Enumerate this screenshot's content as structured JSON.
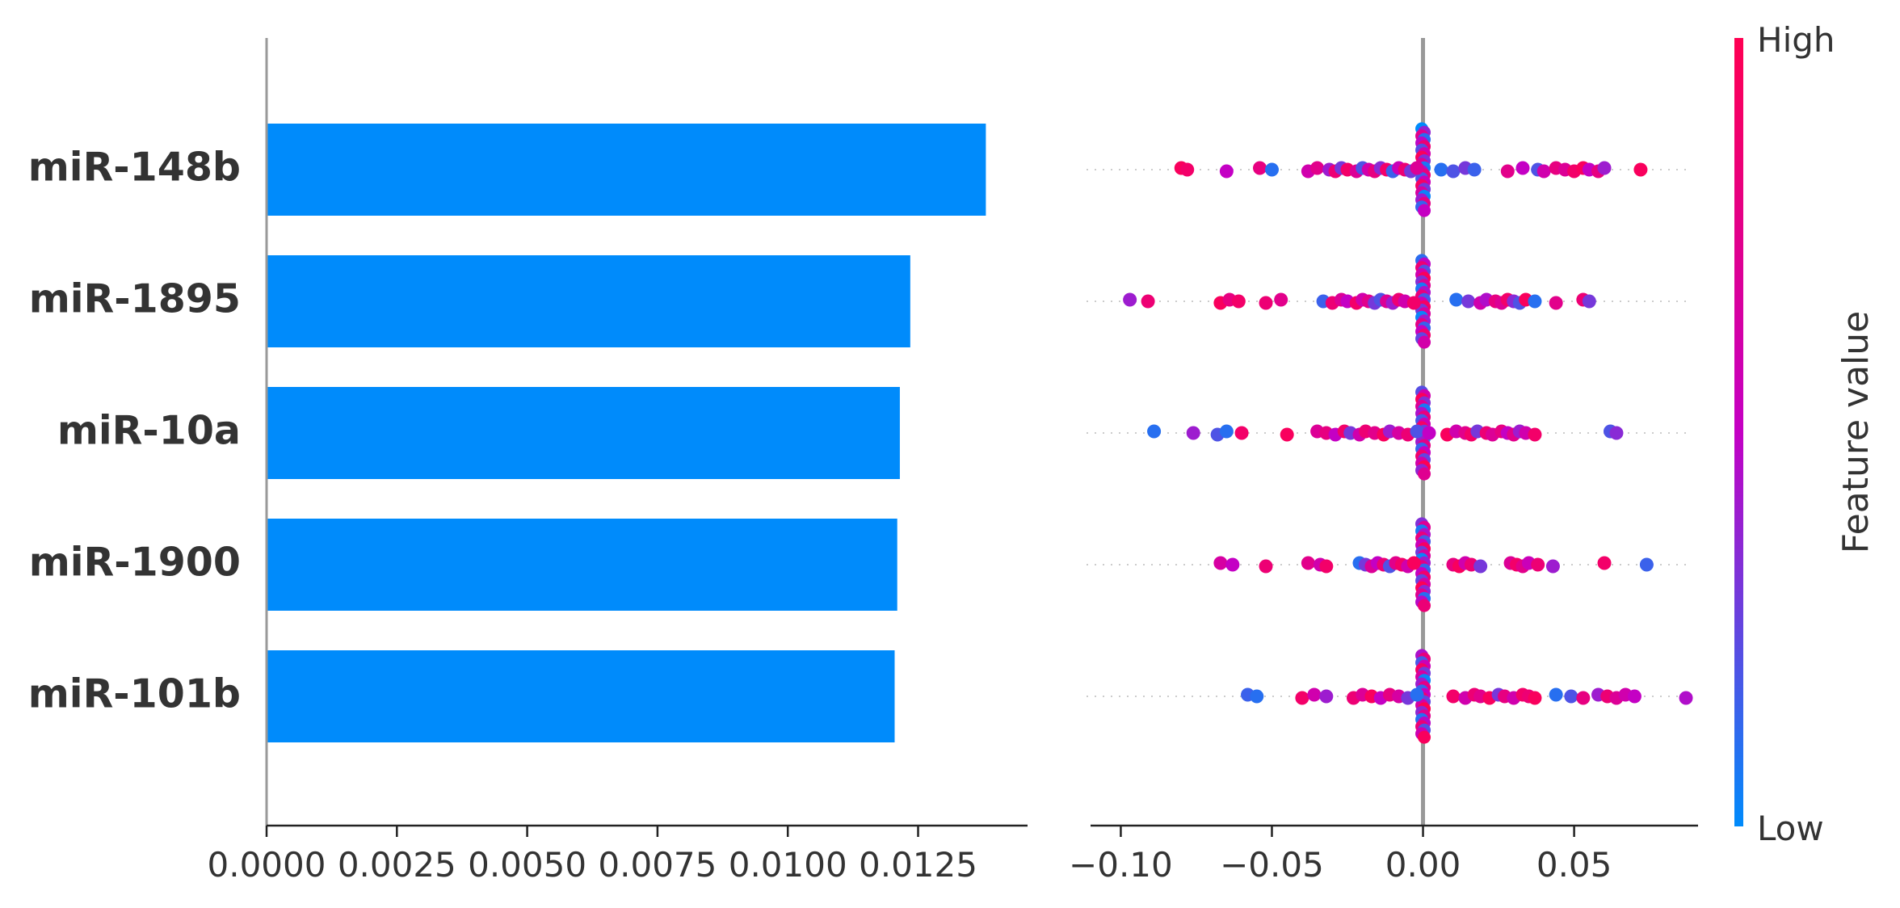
{
  "chart_data": [
    {
      "type": "bar",
      "orientation": "horizontal",
      "categories": [
        "miR-148b",
        "miR-1895",
        "miR-10a",
        "miR-1900",
        "miR-101b"
      ],
      "values": [
        0.0138,
        0.01235,
        0.01215,
        0.0121,
        0.01205
      ],
      "xlim": [
        0,
        0.0146
      ],
      "xticks": [
        0.0,
        0.0025,
        0.005,
        0.0075,
        0.01,
        0.0125
      ],
      "xtick_labels": [
        "0.0000",
        "0.0025",
        "0.0050",
        "0.0075",
        "0.0100",
        "0.0125"
      ],
      "bar_color": "#008bfb",
      "grid": false
    },
    {
      "type": "scatter",
      "style": "beeswarm",
      "categories": [
        "miR-148b",
        "miR-1895",
        "miR-10a",
        "miR-1900",
        "miR-101b"
      ],
      "xlim": [
        -0.11,
        0.091
      ],
      "xticks": [
        -0.1,
        -0.05,
        0.0,
        0.05
      ],
      "xtick_labels": [
        "−0.10",
        "−0.05",
        "0.00",
        "0.05"
      ],
      "zero_line": 0.0,
      "colorbar": {
        "title": "Feature value",
        "high_label": "High",
        "low_label": "Low",
        "low_color": "#008bfb",
        "mid_color": "#c400c4",
        "high_color": "#ff0052"
      },
      "series": [
        {
          "points": [
            [
              -0.08,
              0.95
            ],
            [
              -0.078,
              0.9
            ],
            [
              -0.065,
              0.5
            ],
            [
              -0.054,
              0.8
            ],
            [
              -0.05,
              0.1
            ],
            [
              -0.038,
              0.6
            ],
            [
              -0.035,
              0.75
            ],
            [
              -0.031,
              0.4
            ],
            [
              -0.029,
              0.85
            ],
            [
              -0.027,
              0.3
            ],
            [
              -0.025,
              0.9
            ],
            [
              -0.022,
              0.7
            ],
            [
              -0.02,
              0.2
            ],
            [
              -0.018,
              0.6
            ],
            [
              -0.016,
              0.8
            ],
            [
              -0.014,
              0.35
            ],
            [
              -0.012,
              0.9
            ],
            [
              -0.01,
              0.15
            ],
            [
              -0.008,
              0.55
            ],
            [
              -0.006,
              0.85
            ],
            [
              -0.004,
              0.3
            ],
            [
              -0.002,
              0.7
            ],
            [
              0.006,
              0.1
            ],
            [
              0.01,
              0.2
            ],
            [
              0.014,
              0.3
            ],
            [
              0.017,
              0.15
            ],
            [
              0.028,
              0.75
            ],
            [
              0.033,
              0.5
            ],
            [
              0.038,
              0.2
            ],
            [
              0.04,
              0.6
            ],
            [
              0.044,
              0.8
            ],
            [
              0.047,
              0.7
            ],
            [
              0.05,
              0.9
            ],
            [
              0.053,
              0.95
            ],
            [
              0.055,
              0.5
            ],
            [
              0.058,
              0.8
            ],
            [
              0.06,
              0.4
            ],
            [
              0.072,
              0.95
            ]
          ]
        },
        {
          "points": [
            [
              -0.097,
              0.4
            ],
            [
              -0.091,
              0.85
            ],
            [
              -0.067,
              0.95
            ],
            [
              -0.064,
              0.8
            ],
            [
              -0.061,
              0.9
            ],
            [
              -0.052,
              0.85
            ],
            [
              -0.047,
              0.75
            ],
            [
              -0.033,
              0.15
            ],
            [
              -0.03,
              0.85
            ],
            [
              -0.027,
              0.7
            ],
            [
              -0.025,
              0.5
            ],
            [
              -0.022,
              0.9
            ],
            [
              -0.02,
              0.6
            ],
            [
              -0.018,
              0.75
            ],
            [
              -0.016,
              0.3
            ],
            [
              -0.014,
              0.2
            ],
            [
              -0.012,
              0.7
            ],
            [
              -0.01,
              0.4
            ],
            [
              -0.008,
              0.85
            ],
            [
              -0.006,
              0.6
            ],
            [
              -0.003,
              0.9
            ],
            [
              0.011,
              0.1
            ],
            [
              0.015,
              0.3
            ],
            [
              0.019,
              0.6
            ],
            [
              0.021,
              0.45
            ],
            [
              0.024,
              0.8
            ],
            [
              0.026,
              0.7
            ],
            [
              0.028,
              0.9
            ],
            [
              0.03,
              0.35
            ],
            [
              0.032,
              0.2
            ],
            [
              0.034,
              0.95
            ],
            [
              0.037,
              0.1
            ],
            [
              0.044,
              0.75
            ],
            [
              0.053,
              0.85
            ],
            [
              0.055,
              0.3
            ]
          ]
        },
        {
          "points": [
            [
              -0.089,
              0.1
            ],
            [
              -0.076,
              0.4
            ],
            [
              -0.068,
              0.2
            ],
            [
              -0.065,
              0.1
            ],
            [
              -0.06,
              0.9
            ],
            [
              -0.045,
              0.95
            ],
            [
              -0.035,
              0.7
            ],
            [
              -0.032,
              0.8
            ],
            [
              -0.029,
              0.5
            ],
            [
              -0.026,
              0.9
            ],
            [
              -0.024,
              0.3
            ],
            [
              -0.021,
              0.6
            ],
            [
              -0.019,
              0.85
            ],
            [
              -0.016,
              0.75
            ],
            [
              -0.013,
              0.95
            ],
            [
              -0.011,
              0.4
            ],
            [
              -0.008,
              0.65
            ],
            [
              -0.005,
              0.85
            ],
            [
              -0.002,
              0.2
            ],
            [
              0.002,
              0.5
            ],
            [
              0.008,
              0.95
            ],
            [
              0.011,
              0.6
            ],
            [
              0.014,
              0.75
            ],
            [
              0.016,
              0.9
            ],
            [
              0.018,
              0.3
            ],
            [
              0.021,
              0.85
            ],
            [
              0.023,
              0.7
            ],
            [
              0.026,
              0.8
            ],
            [
              0.028,
              0.5
            ],
            [
              0.03,
              0.75
            ],
            [
              0.032,
              0.4
            ],
            [
              0.034,
              0.6
            ],
            [
              0.037,
              0.9
            ],
            [
              0.062,
              0.2
            ],
            [
              0.064,
              0.35
            ]
          ]
        },
        {
          "points": [
            [
              -0.067,
              0.65
            ],
            [
              -0.063,
              0.5
            ],
            [
              -0.052,
              0.85
            ],
            [
              -0.038,
              0.75
            ],
            [
              -0.034,
              0.6
            ],
            [
              -0.032,
              0.9
            ],
            [
              -0.021,
              0.1
            ],
            [
              -0.019,
              0.3
            ],
            [
              -0.017,
              0.7
            ],
            [
              -0.015,
              0.5
            ],
            [
              -0.013,
              0.85
            ],
            [
              -0.011,
              0.2
            ],
            [
              -0.009,
              0.75
            ],
            [
              -0.007,
              0.9
            ],
            [
              -0.005,
              0.6
            ],
            [
              -0.003,
              0.95
            ],
            [
              0.01,
              0.8
            ],
            [
              0.012,
              0.95
            ],
            [
              0.014,
              0.6
            ],
            [
              0.016,
              0.85
            ],
            [
              0.019,
              0.3
            ],
            [
              0.029,
              0.7
            ],
            [
              0.031,
              0.9
            ],
            [
              0.033,
              0.75
            ],
            [
              0.035,
              0.55
            ],
            [
              0.038,
              0.85
            ],
            [
              0.043,
              0.4
            ],
            [
              0.06,
              0.9
            ],
            [
              0.074,
              0.15
            ]
          ]
        },
        {
          "points": [
            [
              -0.058,
              0.15
            ],
            [
              -0.055,
              0.1
            ],
            [
              -0.04,
              0.9
            ],
            [
              -0.036,
              0.6
            ],
            [
              -0.032,
              0.4
            ],
            [
              -0.023,
              0.85
            ],
            [
              -0.02,
              0.7
            ],
            [
              -0.017,
              0.95
            ],
            [
              -0.014,
              0.5
            ],
            [
              -0.011,
              0.8
            ],
            [
              -0.008,
              0.65
            ],
            [
              -0.005,
              0.3
            ],
            [
              -0.002,
              0.1
            ],
            [
              0.01,
              0.9
            ],
            [
              0.014,
              0.6
            ],
            [
              0.017,
              0.85
            ],
            [
              0.019,
              0.75
            ],
            [
              0.022,
              0.95
            ],
            [
              0.025,
              0.3
            ],
            [
              0.027,
              0.8
            ],
            [
              0.03,
              0.6
            ],
            [
              0.033,
              0.9
            ],
            [
              0.035,
              0.85
            ],
            [
              0.037,
              0.95
            ],
            [
              0.044,
              0.1
            ],
            [
              0.049,
              0.2
            ],
            [
              0.053,
              0.8
            ],
            [
              0.058,
              0.4
            ],
            [
              0.061,
              0.85
            ],
            [
              0.064,
              0.7
            ],
            [
              0.067,
              0.6
            ],
            [
              0.07,
              0.5
            ],
            [
              0.087,
              0.45
            ]
          ]
        }
      ]
    }
  ]
}
